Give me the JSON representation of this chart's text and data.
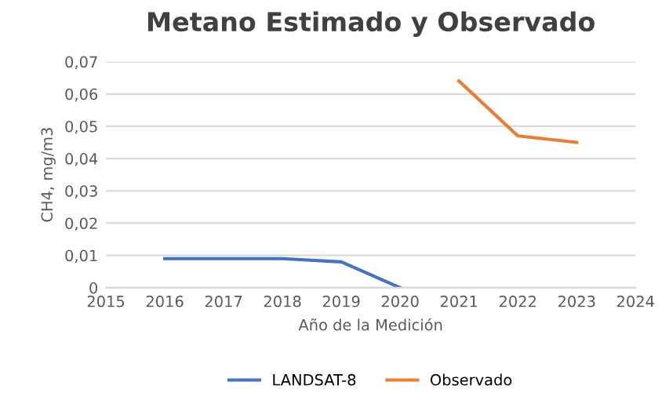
{
  "chart_data": {
    "type": "line",
    "title": "Metano Estimado y Observado",
    "xlabel": "Año de la Medición",
    "ylabel": "CH4, mg/m3",
    "series": [
      {
        "name": "LANDSAT-8",
        "color": "#4472c4",
        "x": [
          2016,
          2017,
          2018,
          2019,
          2020
        ],
        "values": [
          0.009,
          0.009,
          0.009,
          0.008,
          0
        ]
      },
      {
        "name": "Observado",
        "color": "#ed7d31",
        "x": [
          2021,
          2022,
          2023
        ],
        "values": [
          0.064,
          0.047,
          0.045
        ]
      }
    ],
    "xlim": [
      2015,
      2024
    ],
    "xticks": [
      2015,
      2016,
      2017,
      2018,
      2019,
      2020,
      2021,
      2022,
      2023,
      2024
    ],
    "ylim": [
      0,
      0.07
    ],
    "yticks": [
      0,
      {
        "value": 0.01,
        "label": "0,01"
      },
      {
        "value": 0.02,
        "label": "0,02"
      },
      {
        "value": 0.03,
        "label": "0,03"
      },
      {
        "value": 0.04,
        "label": "0,04"
      },
      {
        "value": 0.05,
        "label": "0,05"
      },
      {
        "value": 0.06,
        "label": "0,06"
      },
      {
        "value": 0.07,
        "label": "0,07"
      }
    ],
    "grid": "y",
    "legend": "bottom",
    "marker": "none",
    "line_style": "solid"
  }
}
